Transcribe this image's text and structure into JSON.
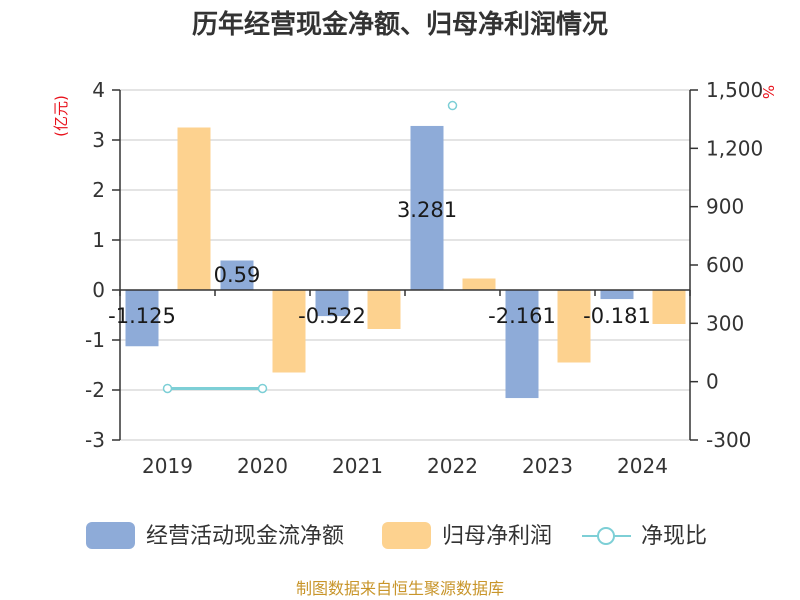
{
  "chart_data": {
    "type": "bar",
    "title": "历年经营现金净额、归母净利润情况",
    "categories": [
      "2019",
      "2020",
      "2021",
      "2022",
      "2023",
      "2024"
    ],
    "left_axis": {
      "unit": "(亿元)",
      "ylim": [
        -3,
        4
      ],
      "ticks": [
        "4",
        "3",
        "2",
        "1",
        "0",
        "-1",
        "-2",
        "-3"
      ],
      "tick_values": [
        4,
        3,
        2,
        1,
        0,
        -1,
        -2,
        -3
      ]
    },
    "right_axis": {
      "unit": "%",
      "ylim": [
        -300,
        1500
      ],
      "ticks": [
        "1,500",
        "1,200",
        "900",
        "600",
        "300",
        "0",
        "-300"
      ],
      "tick_values": [
        1500,
        1200,
        900,
        600,
        300,
        0,
        -300
      ]
    },
    "series": [
      {
        "name": "经营活动现金流净额",
        "color": "#8eabd8",
        "axis": "left",
        "values": [
          -1.125,
          0.59,
          -0.522,
          3.281,
          -2.161,
          -0.181
        ],
        "labels": [
          "-1.125",
          "0.59",
          "-0.522",
          "3.281",
          "-2.161",
          "-0.181"
        ]
      },
      {
        "name": "归母净利润",
        "color": "#fdd28f",
        "axis": "left",
        "values": [
          3.25,
          -1.65,
          -0.78,
          0.23,
          -1.45,
          -0.68
        ]
      },
      {
        "name": "净现比",
        "color": "#7dcfd6",
        "axis": "right",
        "type": "line",
        "values": [
          -35,
          -35,
          null,
          1420,
          null,
          null
        ]
      }
    ],
    "grid": true,
    "legend_position": "bottom"
  },
  "source": "制图数据来自恒生聚源数据库"
}
